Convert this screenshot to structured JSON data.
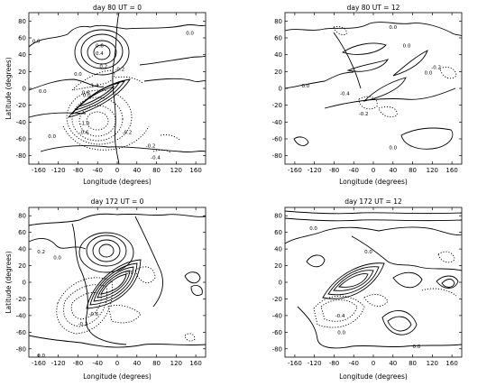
{
  "chart_data": [
    {
      "type": "contour",
      "title": "day 80 UT = 0",
      "xlabel": "Longitude (degrees)",
      "ylabel": "Latitude (degrees)",
      "xlim": [
        -180,
        180
      ],
      "ylim": [
        -90,
        90
      ],
      "xticks": [
        -160,
        -120,
        -80,
        -40,
        0,
        40,
        80,
        120,
        160
      ],
      "yticks": [
        80,
        60,
        40,
        20,
        0,
        -20,
        -40,
        -60,
        -80
      ],
      "line_styles": {
        "positive": "solid",
        "negative": "dotted"
      },
      "contour_labels": [
        {
          "text": "0.0",
          "lon": -165,
          "lat": 56
        },
        {
          "text": "0.0",
          "lon": 148,
          "lat": 66
        },
        {
          "text": "0.0",
          "lon": -152,
          "lat": -3
        },
        {
          "text": "0.0",
          "lon": -80,
          "lat": 17
        },
        {
          "text": "0.0",
          "lon": -133,
          "lat": -57
        },
        {
          "text": "0.6",
          "lon": -36,
          "lat": 51
        },
        {
          "text": "0.4",
          "lon": -36,
          "lat": 42
        },
        {
          "text": "0.2",
          "lon": -28,
          "lat": 26
        },
        {
          "text": "-0.2",
          "lon": 5,
          "lat": 23
        },
        {
          "text": "1.4",
          "lon": -46,
          "lat": 4
        },
        {
          "text": "0.6",
          "lon": -64,
          "lat": -5
        },
        {
          "text": "0.0",
          "lon": -62,
          "lat": -8
        },
        {
          "text": "-1.0",
          "lon": -66,
          "lat": -41
        },
        {
          "text": "-0.6",
          "lon": -68,
          "lat": -52
        },
        {
          "text": "-0.2",
          "lon": 20,
          "lat": -52
        },
        {
          "text": "-0.2",
          "lon": 68,
          "lat": -68
        },
        {
          "text": "-0.4",
          "lon": 78,
          "lat": -82
        }
      ]
    },
    {
      "type": "contour",
      "title": "day 80 UT = 12",
      "xlabel": "Longitude (degrees)",
      "ylabel": "",
      "xlim": [
        -180,
        180
      ],
      "ylim": [
        -90,
        90
      ],
      "xticks": [
        -160,
        -120,
        -80,
        -40,
        0,
        40,
        80,
        120,
        160
      ],
      "yticks": [
        80,
        60,
        40,
        20,
        0,
        -20,
        -40,
        -60,
        -80
      ],
      "line_styles": {
        "positive": "solid",
        "negative": "dotted"
      },
      "contour_labels": [
        {
          "text": "0.0",
          "lon": 40,
          "lat": 73
        },
        {
          "text": "0.0",
          "lon": 68,
          "lat": 51
        },
        {
          "text": "0.0",
          "lon": -138,
          "lat": 3
        },
        {
          "text": "-0.2",
          "lon": 128,
          "lat": 25
        },
        {
          "text": "0.0",
          "lon": 112,
          "lat": 19
        },
        {
          "text": "-0.4",
          "lon": -58,
          "lat": -6
        },
        {
          "text": "-0.2",
          "lon": -20,
          "lat": -30
        },
        {
          "text": "0.0",
          "lon": 40,
          "lat": -70
        }
      ]
    },
    {
      "type": "contour",
      "title": "day 172 UT = 0",
      "xlabel": "Longitude (degrees)",
      "ylabel": "Latitude (degrees)",
      "xlim": [
        -180,
        180
      ],
      "ylim": [
        -90,
        90
      ],
      "xticks": [
        -160,
        -120,
        -80,
        -40,
        0,
        40,
        80,
        120,
        160
      ],
      "yticks": [
        80,
        60,
        40,
        20,
        0,
        -20,
        -40,
        -60,
        -80
      ],
      "line_styles": {
        "positive": "solid",
        "negative": "dotted"
      },
      "contour_labels": [
        {
          "text": "0.2",
          "lon": -155,
          "lat": 37
        },
        {
          "text": "0.0",
          "lon": -122,
          "lat": 30
        },
        {
          "text": "0.0",
          "lon": 25,
          "lat": 12
        },
        {
          "text": "-0.6",
          "lon": -48,
          "lat": -38
        },
        {
          "text": "-0.2",
          "lon": -70,
          "lat": -50
        },
        {
          "text": "0.0",
          "lon": -155,
          "lat": -88
        }
      ]
    },
    {
      "type": "contour",
      "title": "day 172 UT = 12",
      "xlabel": "Longitude (degrees)",
      "ylabel": "",
      "xlim": [
        -180,
        180
      ],
      "ylim": [
        -90,
        90
      ],
      "xticks": [
        -160,
        -120,
        -80,
        -40,
        0,
        40,
        80,
        120,
        160
      ],
      "yticks": [
        80,
        60,
        40,
        20,
        0,
        -20,
        -40,
        -60,
        -80
      ],
      "line_styles": {
        "positive": "solid",
        "negative": "dotted"
      },
      "contour_labels": [
        {
          "text": "0.0",
          "lon": -122,
          "lat": 65
        },
        {
          "text": "0.0",
          "lon": -10,
          "lat": 37
        },
        {
          "text": "-0.4",
          "lon": -68,
          "lat": -40
        },
        {
          "text": "0.0",
          "lon": -65,
          "lat": -60
        },
        {
          "text": "0.0",
          "lon": 88,
          "lat": -77
        }
      ]
    }
  ]
}
